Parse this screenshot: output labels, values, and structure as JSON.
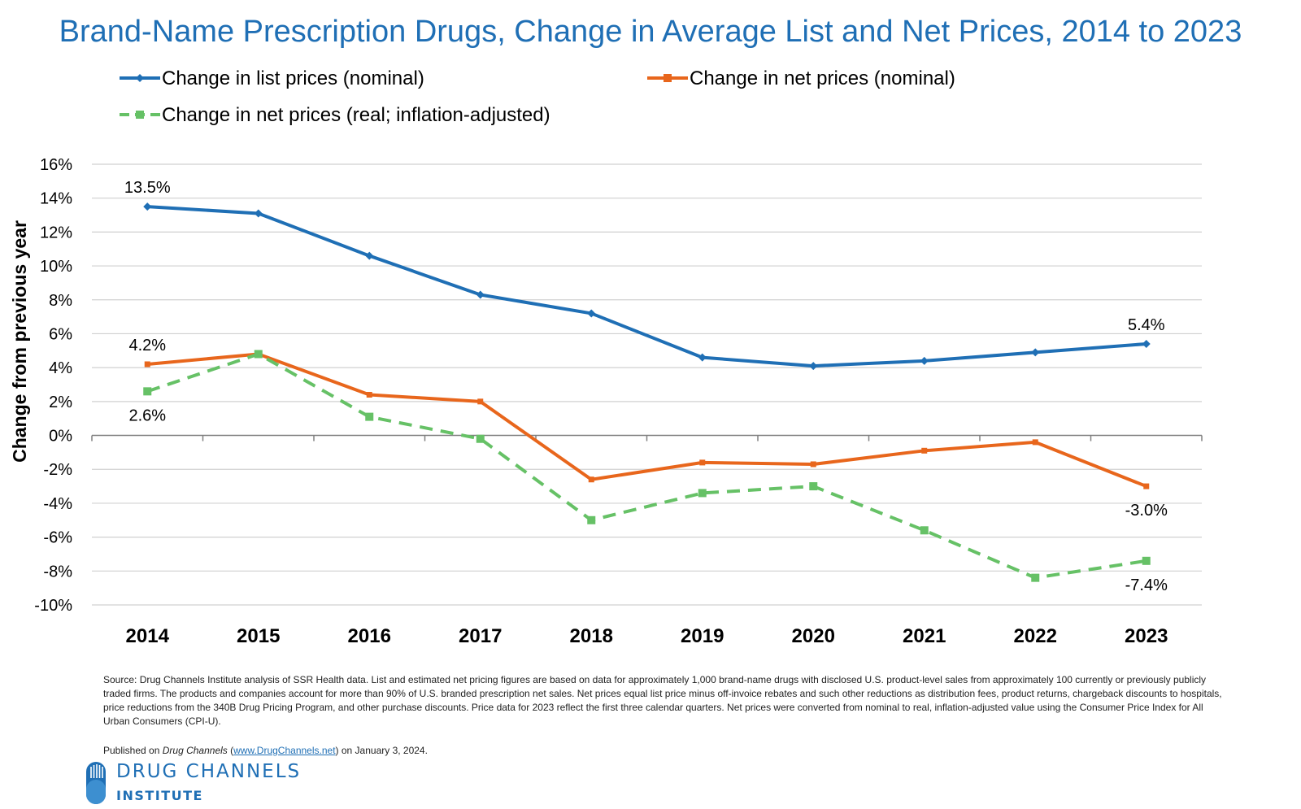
{
  "chart_data": {
    "type": "line",
    "title": "Brand-Name Prescription Drugs, Change in Average List and Net Prices, 2014 to 2023",
    "ylabel": "Change from previous year",
    "xlabel": "",
    "x": [
      "2014",
      "2015",
      "2016",
      "2017",
      "2018",
      "2019",
      "2020",
      "2021",
      "2022",
      "2023"
    ],
    "ylim": [
      -10,
      16
    ],
    "yticks": [
      16,
      14,
      12,
      10,
      8,
      6,
      4,
      2,
      0,
      -2,
      -4,
      -6,
      -8,
      -10
    ],
    "ytick_labels": [
      "16%",
      "14%",
      "12%",
      "10%",
      "8%",
      "6%",
      "4%",
      "2%",
      "0%",
      "-2%",
      "-4%",
      "-6%",
      "-8%",
      "-10%"
    ],
    "grid": true,
    "legend_position": "top",
    "series": [
      {
        "name": "Change in list prices (nominal)",
        "color": "#1f6fb5",
        "style": "solid",
        "marker": "diamond",
        "values": [
          13.5,
          13.1,
          10.6,
          8.3,
          7.2,
          4.6,
          4.1,
          4.4,
          4.9,
          5.4
        ]
      },
      {
        "name": "Change in net prices (nominal)",
        "color": "#e8661c",
        "style": "solid",
        "marker": "square",
        "values": [
          4.2,
          4.8,
          2.4,
          2.0,
          -2.6,
          -1.6,
          -1.7,
          -0.9,
          -0.4,
          -3.0
        ]
      },
      {
        "name": "Change in net prices (real; inflation-adjusted)",
        "color": "#66c166",
        "style": "dashed",
        "marker": "square",
        "values": [
          2.6,
          4.8,
          1.1,
          -0.2,
          -5.0,
          -3.4,
          -3.0,
          -5.6,
          -8.4,
          -7.4
        ]
      }
    ],
    "annotations": [
      {
        "series": 0,
        "index": 0,
        "text": "13.5%",
        "pos": "above"
      },
      {
        "series": 0,
        "index": 9,
        "text": "5.4%",
        "pos": "above"
      },
      {
        "series": 1,
        "index": 0,
        "text": "4.2%",
        "pos": "above"
      },
      {
        "series": 1,
        "index": 9,
        "text": "-3.0%",
        "pos": "below"
      },
      {
        "series": 2,
        "index": 0,
        "text": "2.6%",
        "pos": "below"
      },
      {
        "series": 2,
        "index": 9,
        "text": "-7.4%",
        "pos": "below"
      }
    ]
  },
  "footer": {
    "source": "Source: Drug Channels Institute analysis of SSR Health data. List and estimated net pricing figures are based on data for approximately 1,000 brand-name drugs with disclosed U.S. product-level sales from approximately 100 currently or previously publicly traded firms. The products and companies account for more than 90% of U.S. branded prescription net sales. Net prices equal list price minus off-invoice rebates and such other reductions as distribution fees, product returns, chargeback discounts to hospitals, price reductions from the 340B Drug Pricing Program, and other purchase discounts. Price data for 2023 reflect the first three calendar quarters. Net prices were converted from nominal to real, inflation-adjusted value using the Consumer Price Index for All Urban Consumers (CPI-U).",
    "published_prefix": "Published on ",
    "published_site": "Drug Channels",
    "published_open": " (",
    "published_url": "www.DrugChannels.net",
    "published_suffix": ") on January 3, 2024."
  },
  "logo": {
    "line1": "DRUG CHANNELS",
    "line2": "INSTITUTE",
    "color": "#1f6fb5"
  }
}
